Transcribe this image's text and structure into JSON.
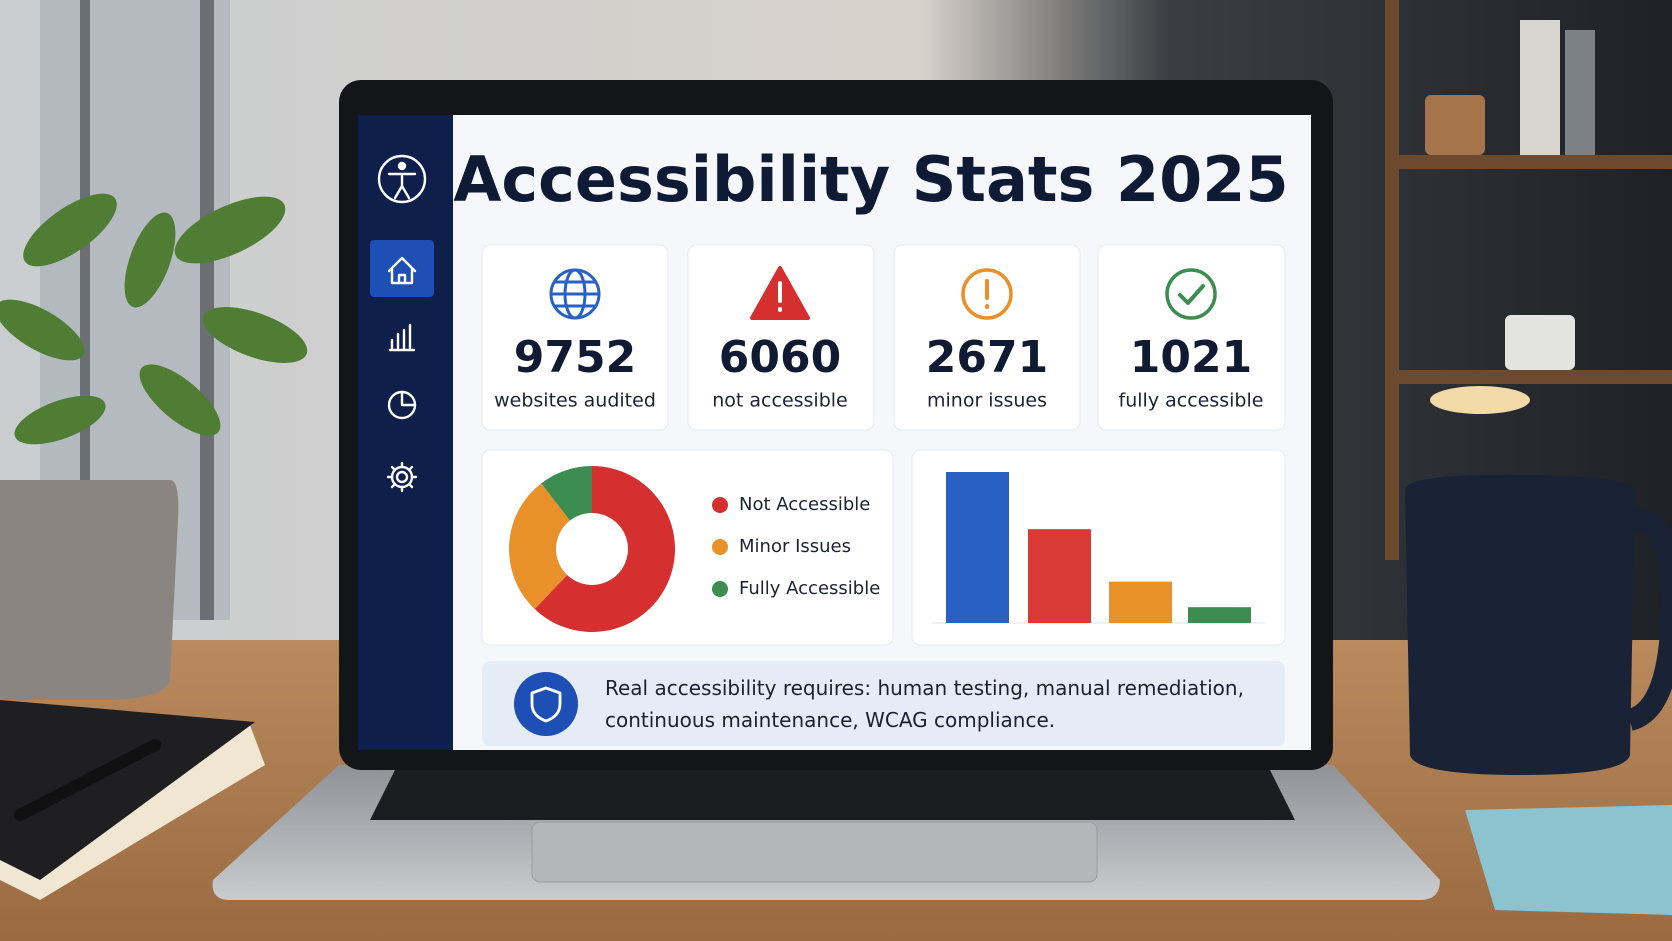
{
  "screen": {
    "title": "Accessibility Stats 2025",
    "stats": [
      {
        "value": 9752,
        "label": "websites audited"
      },
      {
        "value": 6060,
        "label": "not accessible"
      },
      {
        "value": 2671,
        "label": "minor issues"
      },
      {
        "value": 1021,
        "label": "fully accessible"
      }
    ],
    "note": "Real accessibility requires: human testing, manual remediation, continuous maintenance, WCAG compliance."
  },
  "chart_data": [
    {
      "type": "pie",
      "categories": [
        "Not Accessible",
        "Minor Issues",
        "Fully Accessible"
      ],
      "values": [
        6060,
        2671,
        1021
      ],
      "colors": [
        "#d62f2f",
        "#e8902a",
        "#3d8c52"
      ]
    },
    {
      "type": "bar",
      "values": [
        9752,
        6060,
        2671,
        1021
      ],
      "colors": [
        "#2860c4",
        "#d93a35",
        "#e8902a",
        "#3d8c52"
      ]
    }
  ]
}
